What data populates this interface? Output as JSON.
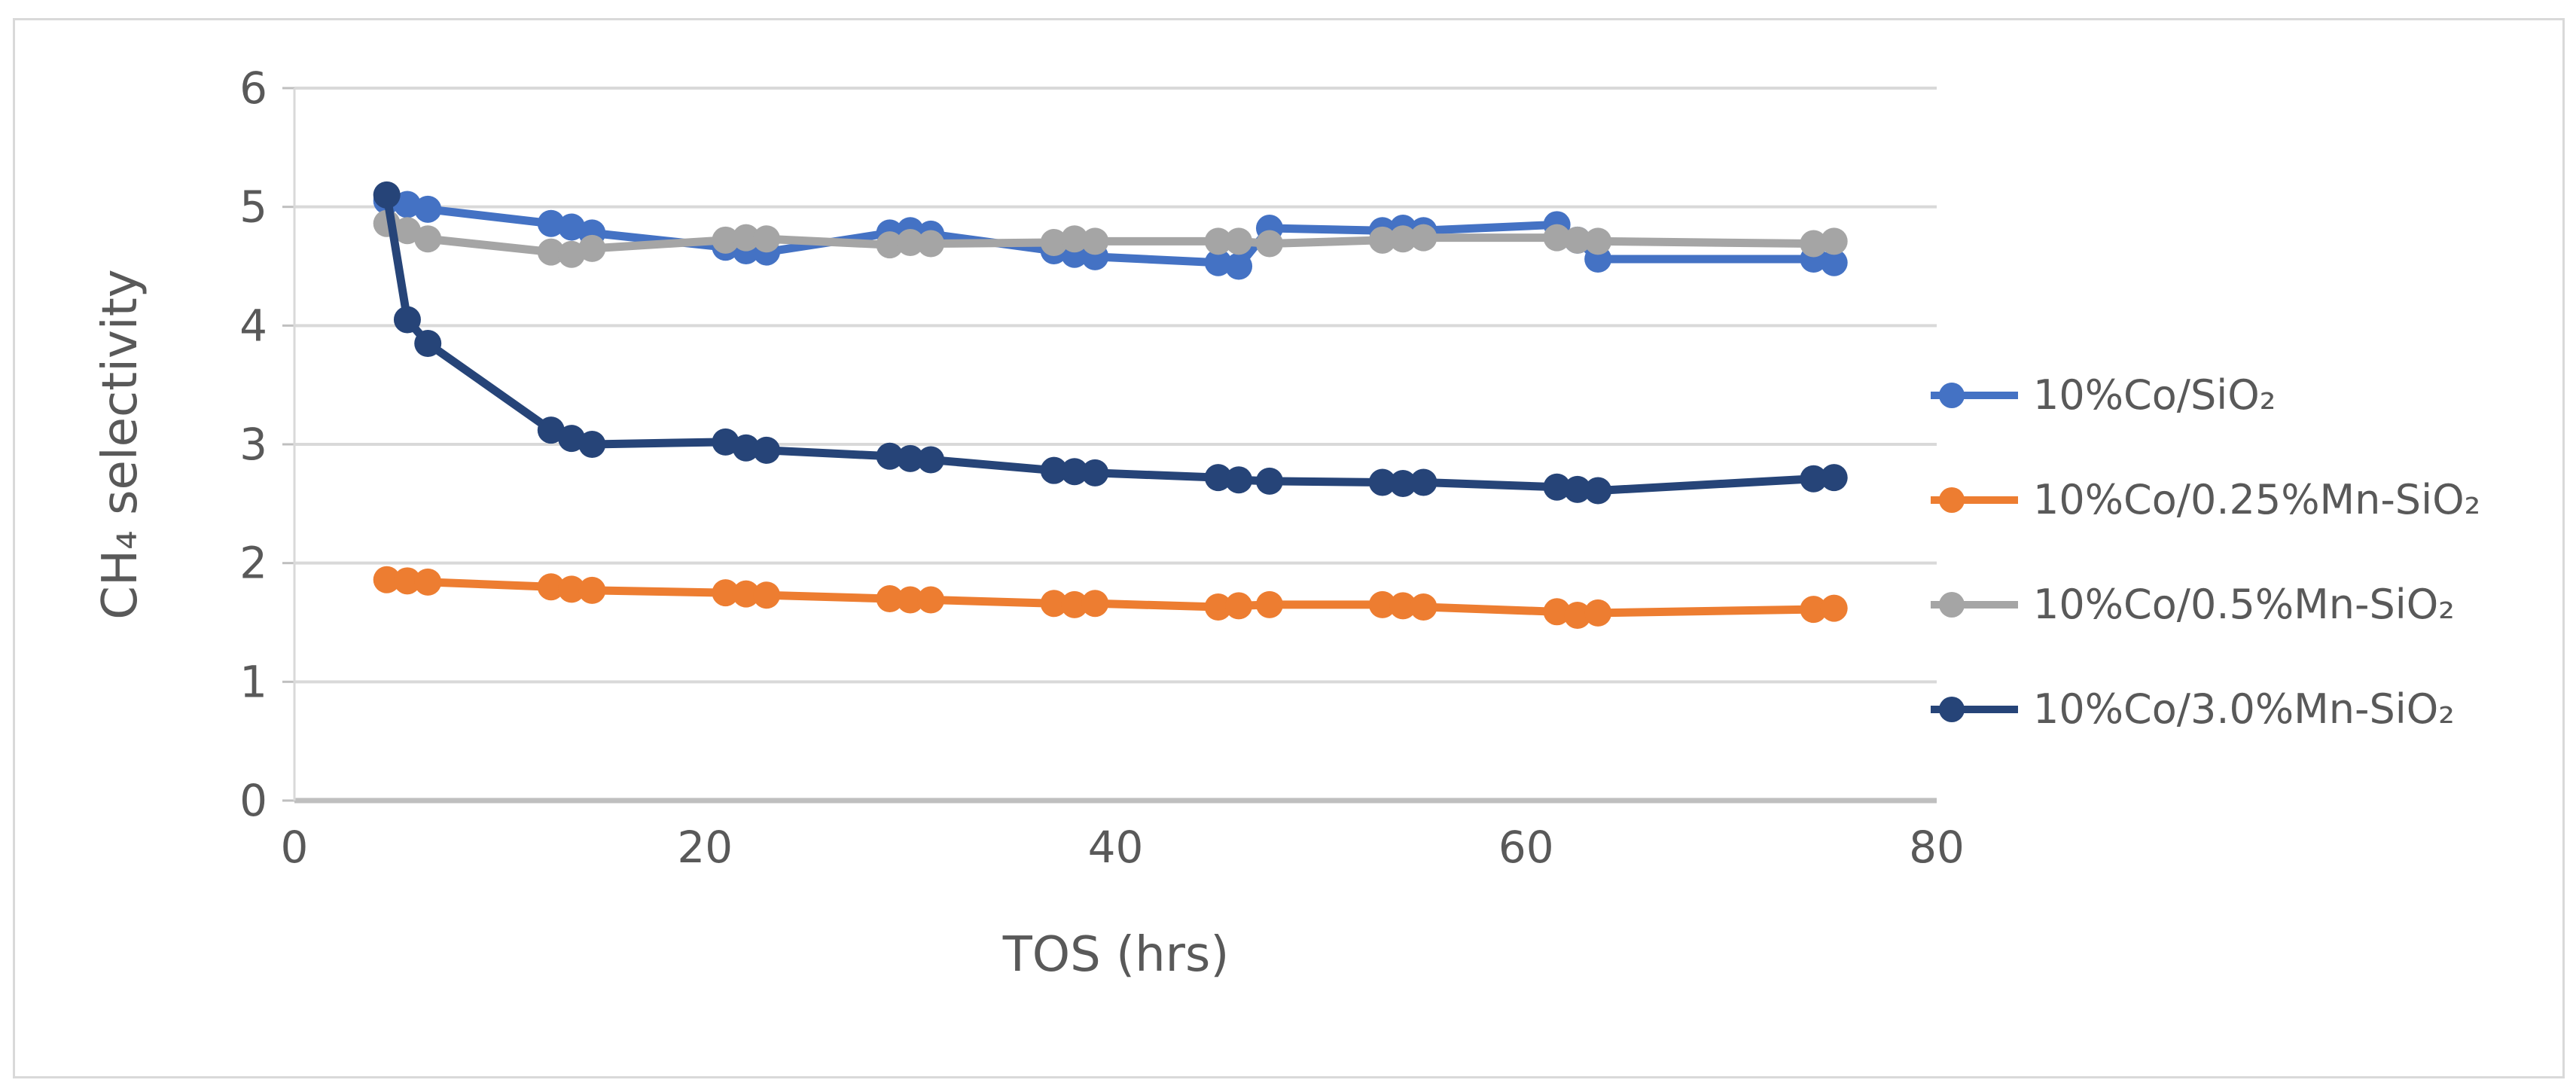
{
  "figure": {
    "background": "#FFFFFF",
    "border_color": "#D9D9D9"
  },
  "chart_data": {
    "type": "line",
    "title": "",
    "xlabel": "TOS (hrs)",
    "ylabel": "CH₄ selectivity",
    "xlim": [
      0,
      80
    ],
    "ylim": [
      0,
      6
    ],
    "x_ticks": [
      0,
      20,
      40,
      60,
      80
    ],
    "y_ticks": [
      0,
      1,
      2,
      3,
      4,
      5,
      6
    ],
    "grid": "horizontal",
    "legend_position": "right",
    "gridline_color": "#D9D9D9",
    "axis_line_color": "#BFBFBF",
    "axis_text_color": "#595959",
    "x": [
      4.5,
      5.5,
      6.5,
      12.5,
      13.5,
      14.5,
      21,
      22,
      23,
      29,
      30,
      31,
      37,
      38,
      39,
      45,
      46,
      47.5,
      53,
      54,
      55,
      61.5,
      62.5,
      63.5,
      74,
      75
    ],
    "series": [
      {
        "name": "10%Co/SiO₂",
        "color": "#4472C4",
        "marker": "circle",
        "values": [
          5.05,
          5.02,
          4.98,
          4.86,
          4.83,
          4.78,
          4.66,
          4.63,
          4.62,
          4.78,
          4.8,
          4.77,
          4.63,
          4.6,
          4.58,
          4.53,
          4.5,
          4.82,
          4.8,
          4.82,
          4.8,
          4.85,
          4.72,
          4.56,
          4.56,
          4.53
        ]
      },
      {
        "name": "10%Co/0.25%Mn-SiO₂",
        "color": "#ED7D31",
        "marker": "circle",
        "values": [
          1.86,
          1.85,
          1.84,
          1.8,
          1.78,
          1.77,
          1.75,
          1.74,
          1.73,
          1.7,
          1.69,
          1.69,
          1.66,
          1.65,
          1.66,
          1.63,
          1.64,
          1.65,
          1.65,
          1.64,
          1.63,
          1.59,
          1.56,
          1.58,
          1.61,
          1.62
        ]
      },
      {
        "name": "10%Co/0.5%Mn-SiO₂",
        "color": "#A5A5A5",
        "marker": "circle",
        "values": [
          4.86,
          4.8,
          4.73,
          4.62,
          4.6,
          4.65,
          4.72,
          4.74,
          4.73,
          4.68,
          4.7,
          4.69,
          4.7,
          4.73,
          4.71,
          4.71,
          4.71,
          4.69,
          4.72,
          4.73,
          4.74,
          4.74,
          4.72,
          4.71,
          4.69,
          4.71
        ]
      },
      {
        "name": "10%Co/3.0%Mn-SiO₂",
        "color": "#264478",
        "marker": "circle",
        "values": [
          5.1,
          4.05,
          3.85,
          3.12,
          3.05,
          3.0,
          3.02,
          2.97,
          2.95,
          2.9,
          2.88,
          2.87,
          2.78,
          2.77,
          2.76,
          2.72,
          2.7,
          2.69,
          2.68,
          2.67,
          2.68,
          2.64,
          2.62,
          2.61,
          2.71,
          2.72
        ]
      }
    ]
  }
}
